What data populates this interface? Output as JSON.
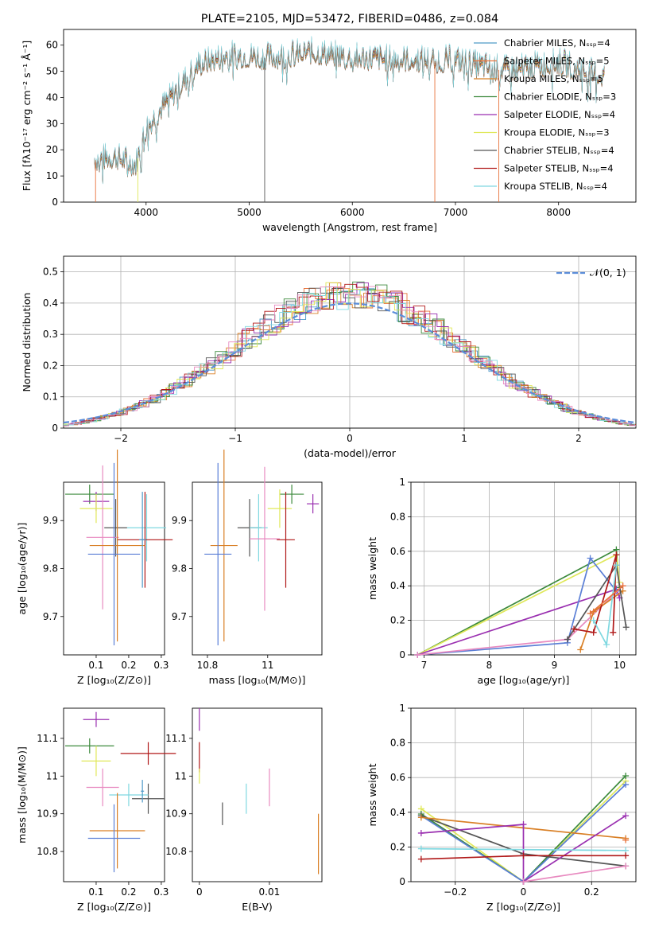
{
  "colors": {
    "Chabrier MILES": "#4f9ac8",
    "Salpeter MILES": "#e8733c",
    "Kroupa MILES": "#d97f25",
    "Chabrier ELODIE": "#3c8a3c",
    "Salpeter ELODIE": "#9a2fb0",
    "Kroupa ELODIE": "#e0e85a",
    "Chabrier STELIB": "#555555",
    "Salpeter STELIB": "#b01818",
    "Kroupa STELIB": "#7fd8e0",
    "extra_pink": "#e88ac0",
    "extra_blue": "#5b7fd6",
    "gauss": "#5b8dd9"
  },
  "chart_data": [
    {
      "id": "spectrum",
      "type": "line",
      "title": "PLATE=2105, MJD=53472, FIBERID=0486, z=0.084",
      "xlabel": "wavelength [Angstrom, rest frame]",
      "ylabel": "Flux [fλ10⁻¹⁷ erg cm⁻² s⁻¹ Å⁻¹]",
      "xlim": [
        3200,
        8750
      ],
      "ylim": [
        0,
        66
      ],
      "xticks": [
        4000,
        5000,
        6000,
        7000,
        8000
      ],
      "yticks": [
        0,
        10,
        20,
        30,
        40,
        50,
        60
      ],
      "legend": [
        "Chabrier MILES, N_SSP=4",
        "Salpeter MILES, N_SSP=5",
        "Kroupa MILES, N_SSP=5",
        "Chabrier ELODIE, N_SSP=3",
        "Salpeter ELODIE, N_SSP=4",
        "Kroupa ELODIE, N_SSP=3",
        "Chabrier STELIB, N_SSP=4",
        "Salpeter STELIB, N_SSP=4",
        "Kroupa STELIB, N_SSP=4"
      ],
      "legend_position": "right",
      "continuum": {
        "x": [
          3500,
          3700,
          3900,
          4000,
          4200,
          4500,
          4800,
          5200,
          5600,
          6000,
          6500,
          7000,
          7200,
          7500,
          8000,
          8400
        ],
        "y": [
          16,
          17,
          14,
          28,
          38,
          52,
          56,
          55,
          57,
          55,
          54,
          54,
          52,
          50,
          53,
          48
        ]
      }
    },
    {
      "id": "residuals",
      "type": "histogram",
      "xlabel": "(data-model)/error",
      "ylabel": "Normed distribution",
      "xlim": [
        -2.5,
        2.5
      ],
      "ylim": [
        0,
        0.55
      ],
      "xticks": [
        -2,
        -1,
        0,
        1,
        2
      ],
      "yticks": [
        0.0,
        0.1,
        0.2,
        0.3,
        0.4,
        0.5
      ],
      "legend": [
        "𝒩(0, 1)"
      ],
      "legend_position": "top-right",
      "gaussian": {
        "mu": 0,
        "sigma": 1
      }
    },
    {
      "id": "z-age",
      "type": "scatter",
      "xlabel": "Z [log₁₀(Z/Z⊙)]",
      "ylabel": "age [log₁₀(age/yr)]",
      "xlim": [
        0.0,
        0.31
      ],
      "ylim": [
        9.62,
        9.98
      ],
      "xticks": [
        0.1,
        0.2,
        0.3
      ],
      "yticks": [
        9.7,
        9.8,
        9.9
      ],
      "points": [
        {
          "model": "Chabrier ELODIE",
          "x": 0.08,
          "xerr": 0.075,
          "y": 9.955,
          "yerr": 0.02
        },
        {
          "model": "Salpeter ELODIE",
          "x": 0.1,
          "xerr": 0.04,
          "y": 9.94,
          "yerr": 0.02
        },
        {
          "model": "Kroupa ELODIE",
          "x": 0.1,
          "xerr": 0.05,
          "y": 9.925,
          "yerr": 0.03
        },
        {
          "model": "Kroupa STELIB",
          "x": 0.255,
          "xerr": 0.06,
          "y": 9.885,
          "yerr": 0.07
        },
        {
          "model": "Chabrier STELIB",
          "x": 0.16,
          "xerr": 0.035,
          "y": 9.885,
          "yerr": 0.06
        },
        {
          "model": "extra_pink",
          "x": 0.12,
          "xerr": 0.05,
          "y": 9.865,
          "yerr": 0.15
        },
        {
          "model": "Salpeter STELIB",
          "x": 0.25,
          "xerr": 0.085,
          "y": 9.86,
          "yerr": 0.1
        },
        {
          "model": "Kroupa MILES",
          "x": 0.165,
          "xerr": 0.085,
          "y": 9.848,
          "yerr": 0.2
        },
        {
          "model": "extra_blue",
          "x": 0.155,
          "xerr": 0.08,
          "y": 9.83,
          "yerr": 0.19
        },
        {
          "model": "Chabrier MILES",
          "x": 0.242,
          "xerr": 0.01,
          "y": 9.86,
          "yerr": 0.1
        }
      ]
    },
    {
      "id": "mass-age",
      "type": "scatter",
      "xlabel": "mass [log₁₀(M/M⊙)]",
      "ylabel": "",
      "xlim": [
        10.75,
        11.18
      ],
      "ylim": [
        9.62,
        9.98
      ],
      "xticks": [
        10.8,
        11.0
      ],
      "yticks": [
        9.7,
        9.8,
        9.9
      ],
      "points": [
        {
          "model": "Chabrier ELODIE",
          "x": 11.08,
          "xerr": 0.04,
          "y": 9.955,
          "yerr": 0.02
        },
        {
          "model": "Salpeter ELODIE",
          "x": 11.15,
          "xerr": 0.02,
          "y": 9.935,
          "yerr": 0.02
        },
        {
          "model": "Kroupa ELODIE",
          "x": 11.04,
          "xerr": 0.04,
          "y": 9.925,
          "yerr": 0.04
        },
        {
          "model": "Chabrier STELIB",
          "x": 10.94,
          "xerr": 0.04,
          "y": 9.885,
          "yerr": 0.06
        },
        {
          "model": "Kroupa STELIB",
          "x": 10.97,
          "xerr": 0.03,
          "y": 9.885,
          "yerr": 0.07
        },
        {
          "model": "extra_pink",
          "x": 10.99,
          "xerr": 0.05,
          "y": 9.862,
          "yerr": 0.15
        },
        {
          "model": "Salpeter STELIB",
          "x": 11.06,
          "xerr": 0.03,
          "y": 9.86,
          "yerr": 0.1
        },
        {
          "model": "Kroupa MILES",
          "x": 10.855,
          "xerr": 0.045,
          "y": 9.848,
          "yerr": 0.2
        },
        {
          "model": "extra_blue",
          "x": 10.835,
          "xerr": 0.045,
          "y": 9.83,
          "yerr": 0.19
        }
      ]
    },
    {
      "id": "age-weight",
      "type": "line",
      "xlabel": "age [log₁₀(age/yr)]",
      "ylabel": "mass weight",
      "xlim": [
        6.8,
        10.25
      ],
      "ylim": [
        0,
        1
      ],
      "xticks": [
        7,
        8,
        9,
        10
      ],
      "yticks": [
        0.0,
        0.2,
        0.4,
        0.6,
        0.8,
        1.0
      ],
      "series": [
        {
          "model": "Chabrier ELODIE",
          "points": [
            [
              6.9,
              0.0
            ],
            [
              9.95,
              0.61
            ],
            [
              10.0,
              0.39
            ]
          ]
        },
        {
          "model": "Kroupa ELODIE",
          "points": [
            [
              6.9,
              0.0
            ],
            [
              9.95,
              0.58
            ],
            [
              10.0,
              0.42
            ]
          ]
        },
        {
          "model": "Salpeter ELODIE",
          "points": [
            [
              6.9,
              0.0
            ],
            [
              9.95,
              0.38
            ],
            [
              10.0,
              0.33
            ]
          ]
        },
        {
          "model": "extra_blue",
          "points": [
            [
              6.9,
              0.0
            ],
            [
              9.2,
              0.07
            ],
            [
              9.55,
              0.56
            ],
            [
              9.95,
              0.37
            ]
          ]
        },
        {
          "model": "extra_pink",
          "points": [
            [
              6.9,
              0.0
            ],
            [
              9.2,
              0.09
            ],
            [
              10.05,
              0.4
            ]
          ]
        },
        {
          "model": "Kroupa MILES",
          "points": [
            [
              9.4,
              0.03
            ],
            [
              9.6,
              0.25
            ],
            [
              10.05,
              0.37
            ]
          ]
        },
        {
          "model": "Chabrier STELIB",
          "points": [
            [
              9.2,
              0.09
            ],
            [
              9.95,
              0.52
            ],
            [
              10.1,
              0.16
            ]
          ]
        },
        {
          "model": "Salpeter STELIB",
          "points": [
            [
              9.3,
              0.15
            ],
            [
              9.6,
              0.13
            ],
            [
              9.95,
              0.58
            ],
            [
              9.9,
              0.13
            ]
          ]
        },
        {
          "model": "Kroupa STELIB",
          "points": [
            [
              9.6,
              0.2
            ],
            [
              9.8,
              0.06
            ],
            [
              9.95,
              0.52
            ]
          ]
        },
        {
          "model": "Salpeter MILES",
          "points": [
            [
              9.55,
              0.24
            ],
            [
              10.05,
              0.4
            ]
          ]
        }
      ]
    },
    {
      "id": "z-mass",
      "type": "scatter",
      "xlabel": "Z [log₁₀(Z/Z⊙)]",
      "ylabel": "mass [log₁₀(M/M⊙)]",
      "xlim": [
        0.0,
        0.31
      ],
      "ylim": [
        10.72,
        11.18
      ],
      "xticks": [
        0.1,
        0.2,
        0.3
      ],
      "yticks": [
        10.8,
        10.9,
        11.0,
        11.1
      ],
      "points": [
        {
          "model": "Salpeter ELODIE",
          "x": 0.1,
          "xerr": 0.04,
          "y": 11.15,
          "yerr": 0.02
        },
        {
          "model": "Chabrier ELODIE",
          "x": 0.08,
          "xerr": 0.075,
          "y": 11.08,
          "yerr": 0.02
        },
        {
          "model": "Salpeter STELIB",
          "x": 0.26,
          "xerr": 0.085,
          "y": 11.06,
          "yerr": 0.03
        },
        {
          "model": "Kroupa ELODIE",
          "x": 0.1,
          "xerr": 0.045,
          "y": 11.04,
          "yerr": 0.04
        },
        {
          "model": "Chabrier STELIB",
          "x": 0.26,
          "xerr": 0.05,
          "y": 10.94,
          "yerr": 0.04
        },
        {
          "model": "Kroupa STELIB",
          "x": 0.2,
          "xerr": 0.06,
          "y": 10.95,
          "yerr": 0.03
        },
        {
          "model": "extra_pink",
          "x": 0.12,
          "xerr": 0.05,
          "y": 10.97,
          "yerr": 0.05
        },
        {
          "model": "Kroupa MILES",
          "x": 0.165,
          "xerr": 0.085,
          "y": 10.855,
          "yerr": 0.1
        },
        {
          "model": "extra_blue",
          "x": 0.155,
          "xerr": 0.08,
          "y": 10.835,
          "yerr": 0.09
        },
        {
          "model": "Chabrier MILES",
          "x": 0.242,
          "xerr": 0.005,
          "y": 10.96,
          "yerr": 0.03
        }
      ]
    },
    {
      "id": "ebv-mass",
      "type": "scatter",
      "xlabel": "E(B-V)",
      "ylabel": "",
      "xlim": [
        -0.001,
        0.0175
      ],
      "ylim": [
        10.72,
        11.18
      ],
      "xticks": [
        0.0,
        0.01
      ],
      "yticks": [
        10.8,
        10.9,
        11.0,
        11.1
      ],
      "points": [
        {
          "model": "Salpeter ELODIE",
          "x": 0.0,
          "y": 11.15,
          "yerr": 0.03
        },
        {
          "model": "Salpeter STELIB",
          "x": 0.0,
          "y": 11.05,
          "yerr": 0.04
        },
        {
          "model": "Kroupa ELODIE",
          "x": 0.0,
          "y": 11.0,
          "yerr": 0.02
        },
        {
          "model": "Chabrier STELIB",
          "x": 0.0033,
          "y": 10.9,
          "yerr": 0.03
        },
        {
          "model": "Kroupa STELIB",
          "x": 0.0067,
          "y": 10.94,
          "yerr": 0.04
        },
        {
          "model": "extra_pink",
          "x": 0.01,
          "y": 10.97,
          "yerr": 0.05
        },
        {
          "model": "Kroupa MILES",
          "x": 0.017,
          "y": 10.82,
          "yerr": 0.08
        }
      ]
    },
    {
      "id": "z-weight",
      "type": "line",
      "xlabel": "Z [log₁₀(Z/Z⊙)]",
      "ylabel": "mass weight",
      "xlim": [
        -0.33,
        0.33
      ],
      "ylim": [
        0,
        1
      ],
      "xticks": [
        -0.2,
        0.0,
        0.2
      ],
      "yticks": [
        0.0,
        0.2,
        0.4,
        0.6,
        0.8,
        1.0
      ],
      "series": [
        {
          "model": "Kroupa ELODIE",
          "points": [
            [
              -0.3,
              0.42
            ],
            [
              0.0,
              0.0
            ],
            [
              0.3,
              0.58
            ]
          ]
        },
        {
          "model": "Chabrier ELODIE",
          "points": [
            [
              -0.3,
              0.39
            ],
            [
              0.0,
              0.0
            ],
            [
              0.3,
              0.61
            ]
          ]
        },
        {
          "model": "extra_blue",
          "points": [
            [
              -0.3,
              0.38
            ],
            [
              0.0,
              0.0
            ],
            [
              0.3,
              0.56
            ]
          ]
        },
        {
          "model": "Chabrier STELIB",
          "points": [
            [
              -0.3,
              0.38
            ],
            [
              0.0,
              0.16
            ],
            [
              0.3,
              0.09
            ]
          ]
        },
        {
          "model": "Kroupa MILES",
          "points": [
            [
              -0.3,
              0.37
            ],
            [
              0.3,
              0.25
            ]
          ]
        },
        {
          "model": "Salpeter ELODIE",
          "points": [
            [
              -0.3,
              0.28
            ],
            [
              0.0,
              0.33
            ],
            [
              0.0,
              0.0
            ],
            [
              0.3,
              0.38
            ]
          ]
        },
        {
          "model": "Kroupa STELIB",
          "points": [
            [
              -0.3,
              0.19
            ],
            [
              0.3,
              0.18
            ]
          ]
        },
        {
          "model": "Salpeter STELIB",
          "points": [
            [
              -0.3,
              0.13
            ],
            [
              0.0,
              0.15
            ],
            [
              0.3,
              0.15
            ]
          ]
        },
        {
          "model": "extra_pink",
          "points": [
            [
              0.0,
              0.0
            ],
            [
              0.3,
              0.09
            ]
          ]
        },
        {
          "model": "Salpeter MILES",
          "points": [
            [
              0.3,
              0.24
            ]
          ]
        }
      ]
    }
  ]
}
